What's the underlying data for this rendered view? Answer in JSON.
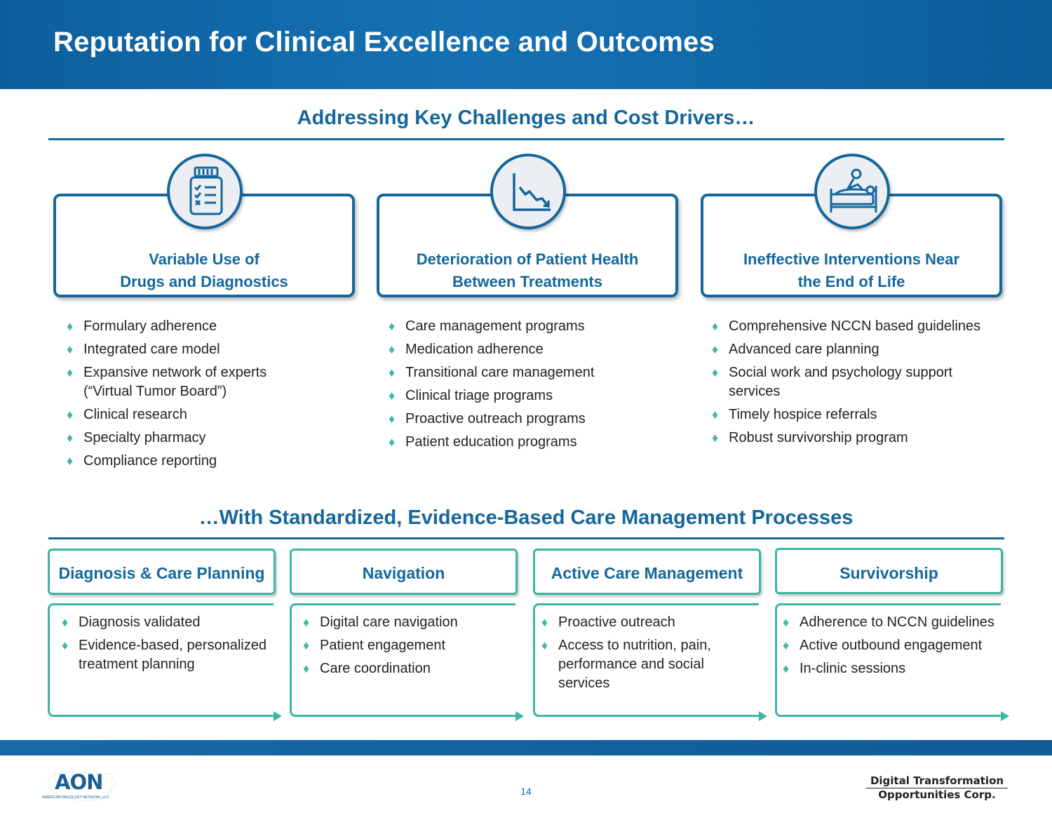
{
  "header": {
    "title": "Reputation for Clinical Excellence and Outcomes"
  },
  "section1": {
    "title": "Addressing Key Challenges and Cost Drivers…"
  },
  "challenges": [
    {
      "icon": "pill-bottle-checklist-icon",
      "title_line1": "Variable Use of",
      "title_line2": "Drugs and Diagnostics",
      "bullets": [
        "Formulary adherence",
        "Integrated care model",
        "Expansive network of experts (“Virtual Tumor Board”)",
        "Clinical research",
        "Specialty pharmacy",
        "Compliance reporting"
      ]
    },
    {
      "icon": "declining-chart-icon",
      "title_line1": "Deterioration of Patient Health",
      "title_line2": "Between Treatments",
      "bullets": [
        "Care management programs",
        "Medication adherence",
        "Transitional care management",
        "Clinical triage programs",
        "Proactive outreach programs",
        "Patient education programs"
      ]
    },
    {
      "icon": "patient-bed-icon",
      "title_line1": "Ineffective Interventions Near",
      "title_line2": "the End of Life",
      "bullets": [
        "Comprehensive NCCN based guidelines",
        "Advanced care planning",
        "Social work and psychology support services",
        "Timely hospice referrals",
        "Robust survivorship program"
      ]
    }
  ],
  "section2": {
    "title": "…With Standardized, Evidence-Based Care Management Processes"
  },
  "processes": [
    {
      "title": "Diagnosis & Care Planning",
      "bullets": [
        "Diagnosis validated",
        "Evidence-based, personalized treatment planning"
      ]
    },
    {
      "title": "Navigation",
      "bullets": [
        "Digital care navigation",
        "Patient engagement",
        "Care coordination"
      ]
    },
    {
      "title": "Active Care Management",
      "bullets": [
        "Proactive outreach",
        "Access to nutrition, pain, performance and social services"
      ]
    },
    {
      "title": "Survivorship",
      "bullets": [
        "Adherence to NCCN guidelines",
        "Active outbound engagement",
        "In-clinic sessions"
      ]
    }
  ],
  "footer": {
    "page_number": "14",
    "left_logo_text": "AON",
    "left_logo_subtext": "AMERICAN ONCOLOGY NETWORK, LLC",
    "right_logo_line1": "Digital Transformation",
    "right_logo_line2": "Opportunities Corp."
  },
  "colors": {
    "primary": "#14679c",
    "accent": "#3db5a3"
  }
}
